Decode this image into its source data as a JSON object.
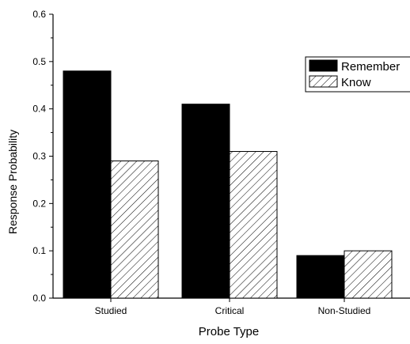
{
  "chart_data": {
    "type": "bar",
    "categories": [
      "Studied",
      "Critical",
      "Non-Studied"
    ],
    "series": [
      {
        "name": "Remember",
        "values": [
          0.48,
          0.41,
          0.09
        ],
        "style": "solid-black"
      },
      {
        "name": "Know",
        "values": [
          0.29,
          0.31,
          0.1
        ],
        "style": "diagonal-hatch"
      }
    ],
    "title": "",
    "xlabel": "Probe Type",
    "ylabel": "Response Probability",
    "ylim": [
      0,
      0.6
    ],
    "yticks": [
      "0.0",
      "0.1",
      "0.2",
      "0.3",
      "0.4",
      "0.5",
      "0.6"
    ],
    "grid": false,
    "legend_position": "top-right",
    "colors": {
      "remember": "#000000",
      "know_fill": "#ffffff",
      "know_hatch": "#000000",
      "axis": "#000000",
      "background": "#ffffff"
    }
  }
}
